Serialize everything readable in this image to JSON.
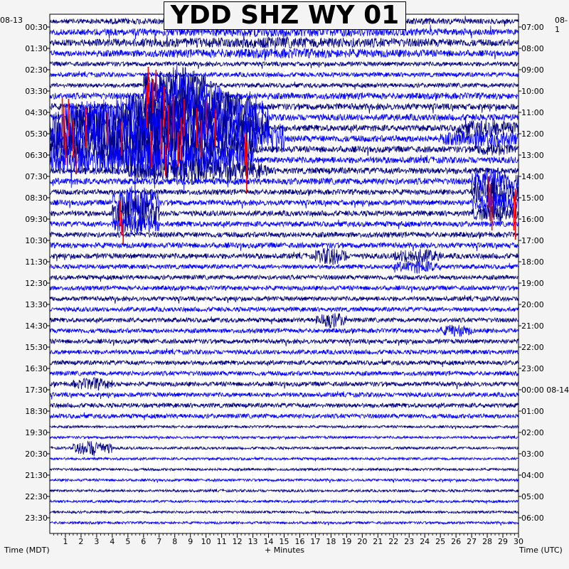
{
  "title": "YDD SHZ WY 01",
  "left_date": "08-13",
  "right_date": "08-1",
  "xlabel": "+ Minutes",
  "left_axis_label": "Time (MDT)",
  "right_axis_label": "Time (UTC)",
  "colors": {
    "trace_a": "#000080",
    "trace_b": "#0000ff",
    "clipped": "#ff0000",
    "grid": "#000000",
    "background": "#f4f4f4",
    "plot_bg": "#ffffff"
  },
  "chart_data": {
    "type": "helicorder",
    "title": "YDD SHZ WY 01",
    "xlabel": "+ Minutes",
    "xlim": [
      0,
      30
    ],
    "x_ticks": [
      "1",
      "2",
      "3",
      "4",
      "5",
      "6",
      "7",
      "8",
      "9",
      "10",
      "11",
      "12",
      "13",
      "14",
      "15",
      "16",
      "17",
      "18",
      "19",
      "20",
      "21",
      "22",
      "23",
      "24",
      "25",
      "26",
      "27",
      "28",
      "29",
      "30"
    ],
    "row_minutes": 30,
    "rows": 48,
    "left_time_labels": [
      "00:30",
      "01:30",
      "02:30",
      "03:30",
      "04:30",
      "05:30",
      "06:30",
      "07:30",
      "08:30",
      "09:30",
      "10:30",
      "11:30",
      "12:30",
      "13:30",
      "14:30",
      "15:30",
      "16:30",
      "17:30",
      "18:30",
      "19:30",
      "20:30",
      "21:30",
      "22:30",
      "23:30"
    ],
    "right_time_labels": [
      "07:00",
      "08:00",
      "09:00",
      "10:00",
      "11:00",
      "12:00",
      "13:00",
      "14:00",
      "15:00",
      "16:00",
      "17:00",
      "18:00",
      "19:00",
      "20:00",
      "21:00",
      "22:00",
      "23:00",
      "00:00 08-14",
      "01:00",
      "02:00",
      "03:00",
      "04:00",
      "05:00",
      "06:00"
    ],
    "trace_colors": [
      "#000080",
      "#0000ff"
    ],
    "clipped_color": "#ff0000",
    "grid": true
  }
}
